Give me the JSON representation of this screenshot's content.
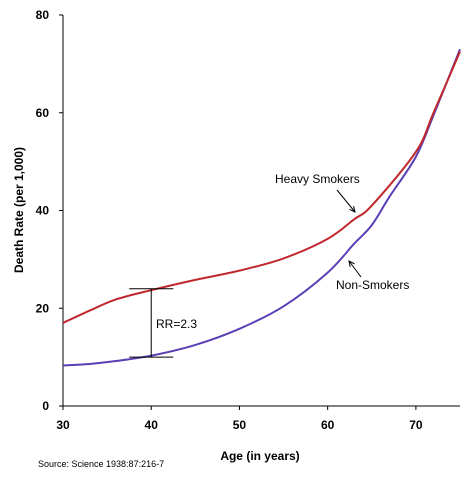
{
  "chart_data": {
    "type": "line",
    "title": "",
    "xlabel": "Age (in years)",
    "ylabel": "Death Rate (per 1,000)",
    "xlim": [
      30,
      75
    ],
    "ylim": [
      0,
      80
    ],
    "x_ticks": [
      30,
      40,
      50,
      60,
      70
    ],
    "y_ticks": [
      0,
      20,
      40,
      60,
      80
    ],
    "grid": false,
    "legend": "none",
    "series": [
      {
        "name": "Heavy Smokers",
        "color": "#c0282d",
        "points": [
          [
            30,
            17
          ],
          [
            33,
            19.5
          ],
          [
            36,
            21.8
          ],
          [
            40,
            23.7
          ],
          [
            45,
            25.8
          ],
          [
            50,
            27.7
          ],
          [
            55,
            30.2
          ],
          [
            60,
            34.2
          ],
          [
            63,
            38.2
          ],
          [
            65,
            41
          ],
          [
            70,
            52
          ],
          [
            72,
            60
          ],
          [
            75,
            72.5
          ]
        ]
      },
      {
        "name": "Non-Smokers",
        "color": "#5b3fb6",
        "points": [
          [
            30,
            8.3
          ],
          [
            33,
            8.6
          ],
          [
            36,
            9.2
          ],
          [
            40,
            10.3
          ],
          [
            45,
            12.5
          ],
          [
            50,
            15.8
          ],
          [
            55,
            20.4
          ],
          [
            60,
            27.3
          ],
          [
            63,
            33.2
          ],
          [
            65,
            37
          ],
          [
            67,
            42.8
          ],
          [
            70,
            51
          ],
          [
            72,
            59.5
          ],
          [
            75,
            73
          ]
        ]
      }
    ],
    "annotations": {
      "heavy_label": "Heavy Smokers",
      "non_label": "Non-Smokers",
      "rr_label": "RR=2.3"
    },
    "rr_bracket": {
      "x": 40,
      "top": 24,
      "bottom": 10,
      "cap_halfwidth_years": 2.5
    },
    "source": "Source: Science 1938:87:216-7"
  }
}
